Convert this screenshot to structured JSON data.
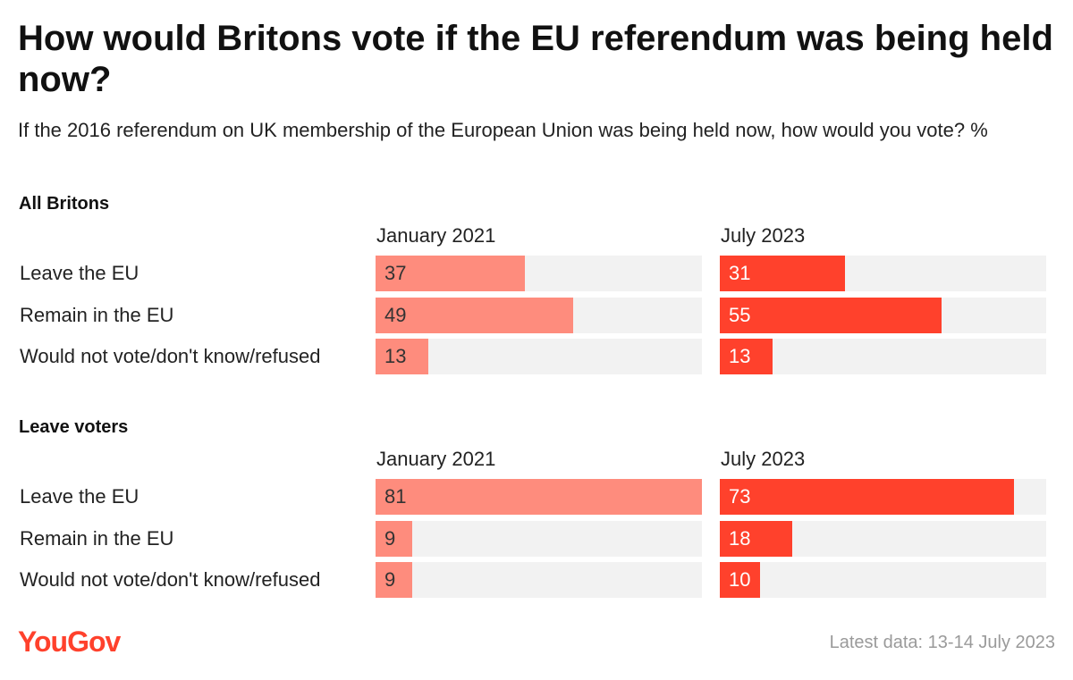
{
  "title": "How would Britons vote if the EU referendum was being held now?",
  "subtitle": "If the 2016 referendum on UK membership of the European Union was being held now, how would you vote? %",
  "footer": {
    "logo": "YouGov",
    "note": "Latest data: 13-14 July 2023"
  },
  "colors": {
    "jan2021": "#fe8c7d",
    "jul2023": "#ff412c",
    "track": "#f2f2f2",
    "logo": "#ff412c",
    "label_on_light": "#333333",
    "label_on_dark": "#ffffff"
  },
  "chart_data": {
    "type": "bar",
    "orientation": "horizontal",
    "title": "How would Britons vote if the EU referendum was being held now?",
    "unit": "%",
    "xlim": [
      0,
      81
    ],
    "periods": [
      "January 2021",
      "July 2023"
    ],
    "categories": [
      "Leave the EU",
      "Remain in the EU",
      "Would not vote/don't know/refused"
    ],
    "groups": [
      {
        "name": "All Britons",
        "series": [
          {
            "name": "January 2021",
            "values": [
              37,
              49,
              13
            ]
          },
          {
            "name": "July 2023",
            "values": [
              31,
              55,
              13
            ]
          }
        ]
      },
      {
        "name": "Leave voters",
        "series": [
          {
            "name": "January 2021",
            "values": [
              81,
              9,
              9
            ]
          },
          {
            "name": "July 2023",
            "values": [
              73,
              18,
              10
            ]
          }
        ]
      }
    ]
  }
}
